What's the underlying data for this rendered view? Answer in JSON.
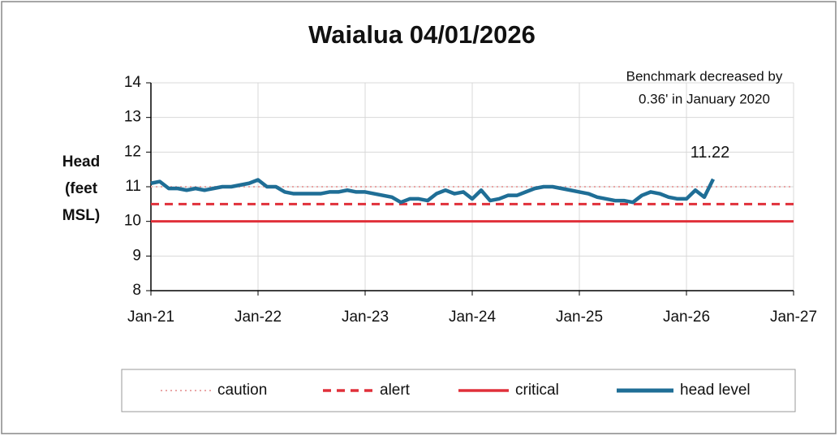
{
  "chart_data": {
    "type": "line",
    "title": "Waialua 04/01/2026",
    "ylabel": [
      "Head",
      "(feet",
      "MSL)"
    ],
    "annotation": [
      "Benchmark decreased by",
      "0.36' in January 2020"
    ],
    "x": [
      "2021-01",
      "2021-02",
      "2021-03",
      "2021-04",
      "2021-05",
      "2021-06",
      "2021-07",
      "2021-08",
      "2021-09",
      "2021-10",
      "2021-11",
      "2021-12",
      "2022-01",
      "2022-02",
      "2022-03",
      "2022-04",
      "2022-05",
      "2022-06",
      "2022-07",
      "2022-08",
      "2022-09",
      "2022-10",
      "2022-11",
      "2022-12",
      "2023-01",
      "2023-02",
      "2023-03",
      "2023-04",
      "2023-05",
      "2023-06",
      "2023-07",
      "2023-08",
      "2023-09",
      "2023-10",
      "2023-11",
      "2023-12",
      "2024-01",
      "2024-02",
      "2024-03",
      "2024-04",
      "2024-05",
      "2024-06",
      "2024-07",
      "2024-08",
      "2024-09",
      "2024-10",
      "2024-11",
      "2024-12",
      "2025-01",
      "2025-02",
      "2025-03",
      "2025-04",
      "2025-05",
      "2025-06",
      "2025-07",
      "2025-08",
      "2025-09",
      "2025-10",
      "2025-11",
      "2025-12",
      "2026-01",
      "2026-02",
      "2026-03",
      "2026-04"
    ],
    "series": [
      {
        "name": "head level",
        "color": "#1f6e96",
        "values": [
          11.1,
          11.15,
          10.95,
          10.95,
          10.9,
          10.95,
          10.9,
          10.95,
          11.0,
          11.0,
          11.05,
          11.1,
          11.2,
          11.0,
          11.0,
          10.85,
          10.8,
          10.8,
          10.8,
          10.8,
          10.85,
          10.85,
          10.9,
          10.85,
          10.85,
          10.8,
          10.75,
          10.7,
          10.55,
          10.65,
          10.65,
          10.6,
          10.8,
          10.9,
          10.8,
          10.85,
          10.65,
          10.9,
          10.6,
          10.65,
          10.75,
          10.75,
          10.85,
          10.95,
          11.0,
          11.0,
          10.95,
          10.9,
          10.85,
          10.8,
          10.7,
          10.65,
          10.6,
          10.6,
          10.55,
          10.75,
          10.85,
          10.8,
          10.7,
          10.65,
          10.65,
          10.9,
          10.7,
          11.22
        ]
      }
    ],
    "reference_lines": [
      {
        "name": "caution",
        "value": 11,
        "color": "#eaa6a6",
        "dash": "dotted"
      },
      {
        "name": "alert",
        "value": 10.5,
        "color": "#e0303a",
        "dash": "dashed"
      },
      {
        "name": "critical",
        "value": 10,
        "color": "#e0303a",
        "dash": "solid"
      }
    ],
    "xlim": [
      "2021-01",
      "2027-01"
    ],
    "xticks": [
      {
        "value": "2021-01",
        "label": "Jan-21"
      },
      {
        "value": "2022-01",
        "label": "Jan-22"
      },
      {
        "value": "2023-01",
        "label": "Jan-23"
      },
      {
        "value": "2024-01",
        "label": "Jan-24"
      },
      {
        "value": "2025-01",
        "label": "Jan-25"
      },
      {
        "value": "2026-01",
        "label": "Jan-26"
      },
      {
        "value": "2027-01",
        "label": "Jan-27"
      }
    ],
    "ylim": [
      8,
      14
    ],
    "yticks": [
      8,
      9,
      10,
      11,
      12,
      13,
      14
    ],
    "grid": true,
    "legend": "bottom"
  }
}
